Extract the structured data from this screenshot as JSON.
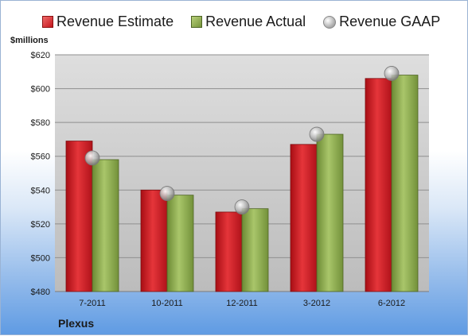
{
  "legend": {
    "estimate": "Revenue Estimate",
    "actual": "Revenue Actual",
    "gaap": "Revenue GAAP"
  },
  "company": "Plexus",
  "chart_data": {
    "type": "bar",
    "unit_label": "$millions",
    "categories": [
      "7-2011",
      "10-2011",
      "12-2011",
      "3-2012",
      "6-2012"
    ],
    "series": [
      {
        "name": "Revenue Estimate",
        "kind": "bar",
        "color": "#c4161c",
        "values": [
          569,
          540,
          527,
          567,
          606
        ]
      },
      {
        "name": "Revenue Actual",
        "kind": "bar",
        "color": "#8aab4a",
        "values": [
          558,
          537,
          529,
          573,
          608
        ]
      },
      {
        "name": "Revenue GAAP",
        "kind": "marker",
        "color": "#b4b4b4",
        "values": [
          559,
          538,
          530,
          573,
          609
        ]
      }
    ],
    "y_ticks": [
      "$480",
      "$500",
      "$520",
      "$540",
      "$560",
      "$580",
      "$600",
      "$620"
    ],
    "ylim": [
      480,
      620
    ],
    "grid": true,
    "legend_position": "top"
  }
}
